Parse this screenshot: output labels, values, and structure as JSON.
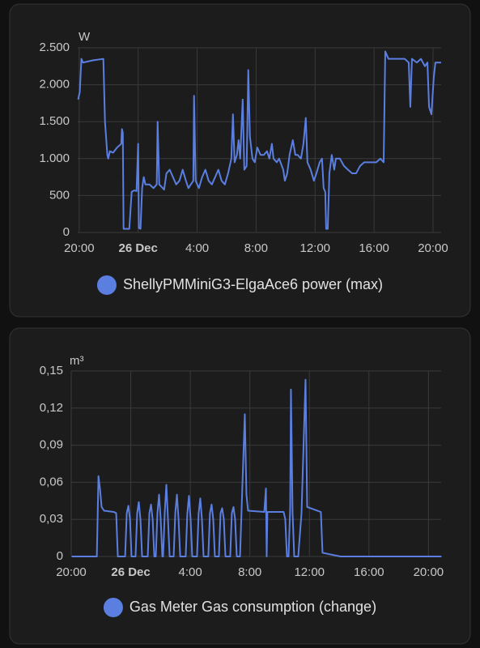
{
  "chart_data": [
    {
      "type": "line",
      "y_unit": "W",
      "xlim": [
        -4.1,
        20.55
      ],
      "xticks": [
        {
          "value": -4,
          "label": "20:00"
        },
        {
          "value": 0,
          "label": "26 Dec"
        },
        {
          "value": 4,
          "label": "4:00"
        },
        {
          "value": 8,
          "label": "8:00"
        },
        {
          "value": 12,
          "label": "12:00"
        },
        {
          "value": 16,
          "label": "16:00"
        },
        {
          "value": 20,
          "label": "20:00"
        }
      ],
      "ylim": [
        0,
        2500
      ],
      "yticks": [
        0,
        500,
        {
          "value": 1000,
          "label": "1.000"
        },
        {
          "value": 1500,
          "label": "1.500"
        },
        {
          "value": 2000,
          "label": "2.000"
        },
        {
          "value": 2500,
          "label": "2.500"
        }
      ],
      "grid": true,
      "x": [
        -4.07,
        -3.96,
        -3.85,
        -3.74,
        -3.08,
        -2.36,
        -2.25,
        -2.09,
        -2.03,
        -1.92,
        -1.7,
        -1.43,
        -1.15,
        -1.1,
        -1.04,
        -0.99,
        -0.6,
        -0.44,
        -0.27,
        -0.11,
        0,
        0.05,
        0.16,
        0.27,
        0.38,
        0.49,
        0.77,
        1.04,
        1.26,
        1.32,
        1.43,
        1.76,
        1.92,
        2.14,
        2.36,
        2.58,
        2.8,
        3.02,
        3.24,
        3.41,
        3.57,
        3.74,
        3.79,
        3.9,
        4.12,
        4.34,
        4.56,
        4.78,
        5.0,
        5.22,
        5.44,
        5.66,
        5.88,
        6.1,
        6.21,
        6.32,
        6.43,
        6.54,
        6.7,
        6.81,
        6.92,
        7.09,
        7.2,
        7.36,
        7.47,
        7.58,
        7.75,
        7.91,
        8.08,
        8.3,
        8.52,
        8.74,
        8.9,
        9.07,
        9.18,
        9.4,
        9.56,
        9.84,
        9.95,
        10.11,
        10.27,
        10.49,
        10.66,
        10.82,
        11.04,
        11.21,
        11.37,
        11.48,
        11.7,
        11.92,
        12.09,
        12.31,
        12.47,
        12.58,
        12.69,
        12.75,
        12.86,
        12.97,
        13.13,
        13.3,
        13.41,
        13.68,
        13.96,
        14.23,
        14.51,
        14.78,
        15.05,
        15.33,
        15.6,
        15.88,
        16.15,
        16.43,
        16.65,
        16.76,
        16.98,
        17.53,
        18.08,
        18.35,
        18.46,
        18.57,
        18.9,
        19.18,
        19.45,
        19.62,
        19.73,
        19.89,
        20.05,
        20.16,
        20.55
      ],
      "series": [
        {
          "name": "ShellyPMMiniG3-ElgaAce6 power (max)",
          "color": "#5b7fe0",
          "values": [
            1800,
            1900,
            2350,
            2300,
            2330,
            2350,
            1500,
            1050,
            1000,
            1100,
            1080,
            1150,
            1200,
            1400,
            1350,
            50,
            50,
            550,
            570,
            560,
            1200,
            60,
            50,
            600,
            750,
            650,
            650,
            600,
            650,
            1500,
            650,
            580,
            800,
            850,
            750,
            650,
            700,
            850,
            700,
            600,
            650,
            700,
            1850,
            700,
            600,
            750,
            850,
            700,
            650,
            750,
            850,
            700,
            650,
            800,
            900,
            1000,
            1600,
            950,
            1050,
            1250,
            1000,
            1800,
            850,
            900,
            2200,
            1300,
            1000,
            950,
            1150,
            1050,
            1050,
            1100,
            1000,
            1200,
            1000,
            950,
            1000,
            850,
            700,
            800,
            1050,
            1250,
            1050,
            1050,
            1000,
            1200,
            1550,
            950,
            850,
            700,
            800,
            950,
            1000,
            600,
            550,
            50,
            50,
            800,
            1050,
            850,
            1000,
            1000,
            900,
            850,
            800,
            800,
            900,
            950,
            950,
            950,
            950,
            1000,
            950,
            2450,
            2350,
            2350,
            2350,
            2300,
            1700,
            2350,
            2300,
            2350,
            2250,
            2300,
            1700,
            1600,
            2100,
            2300,
            2300
          ]
        }
      ]
    },
    {
      "type": "line",
      "y_unit": "m³",
      "xlim": [
        -4,
        20.85
      ],
      "xticks": [
        {
          "value": -4,
          "label": "20:00"
        },
        {
          "value": 0,
          "label": "26 Dec"
        },
        {
          "value": 4,
          "label": "4:00"
        },
        {
          "value": 8,
          "label": "8:00"
        },
        {
          "value": 12,
          "label": "12:00"
        },
        {
          "value": 16,
          "label": "16:00"
        },
        {
          "value": 20,
          "label": "20:00"
        }
      ],
      "ylim": [
        0,
        0.15
      ],
      "yticks": [
        0,
        {
          "value": 0.03,
          "label": "0,03"
        },
        {
          "value": 0.06,
          "label": "0,06"
        },
        {
          "value": 0.09,
          "label": "0,09"
        },
        {
          "value": 0.12,
          "label": "0,12"
        },
        {
          "value": 0.15,
          "label": "0,15"
        }
      ],
      "grid": true,
      "x": [
        -3.97,
        -2.28,
        -2.17,
        -2.07,
        -1.96,
        -1.79,
        -1.14,
        -0.98,
        -0.87,
        -0.38,
        -0.27,
        -0.16,
        -0.05,
        0.05,
        0.32,
        0.43,
        0.54,
        0.65,
        0.76,
        1.14,
        1.25,
        1.36,
        1.47,
        1.58,
        1.68,
        1.79,
        1.9,
        2.01,
        2.12,
        2.17,
        2.28,
        2.39,
        2.5,
        2.61,
        2.88,
        2.99,
        3.1,
        3.21,
        3.32,
        3.69,
        3.8,
        3.91,
        4.02,
        4.13,
        4.45,
        4.56,
        4.67,
        4.78,
        4.89,
        5.21,
        5.32,
        5.43,
        5.54,
        5.65,
        5.92,
        6.03,
        6.14,
        6.25,
        6.36,
        6.68,
        6.79,
        6.9,
        7.01,
        7.12,
        7.34,
        7.45,
        7.66,
        7.77,
        7.88,
        8.97,
        9.08,
        9.13,
        9.18,
        10.27,
        10.38,
        10.49,
        10.6,
        10.71,
        10.76,
        10.87,
        10.98,
        11.25,
        11.47,
        11.74,
        11.85,
        12.77,
        12.88,
        14.08,
        20.87
      ],
      "series": [
        {
          "name": "Gas Meter Gas consumption (change)",
          "color": "#5b7fe0",
          "values": [
            0,
            0,
            0.065,
            0.055,
            0.04,
            0.037,
            0.036,
            0.035,
            0,
            0,
            0.035,
            0.041,
            0.03,
            0,
            0,
            0.035,
            0.044,
            0.03,
            0,
            0,
            0.035,
            0.042,
            0.03,
            0,
            0,
            0.035,
            0.05,
            0.03,
            0,
            0,
            0.035,
            0.058,
            0.03,
            0,
            0,
            0.035,
            0.05,
            0.03,
            0,
            0,
            0.035,
            0.049,
            0.03,
            0,
            0,
            0.035,
            0.047,
            0.03,
            0,
            0,
            0.035,
            0.042,
            0.03,
            0,
            0,
            0.035,
            0.039,
            0.03,
            0,
            0,
            0.035,
            0.04,
            0.03,
            0,
            0,
            0.04,
            0.115,
            0.05,
            0.037,
            0.036,
            0.055,
            0,
            0.036,
            0.036,
            0.03,
            0,
            0,
            0.04,
            0.135,
            0.035,
            0,
            0,
            0.035,
            0.143,
            0.04,
            0.036,
            0.003,
            0,
            0
          ]
        }
      ]
    }
  ]
}
